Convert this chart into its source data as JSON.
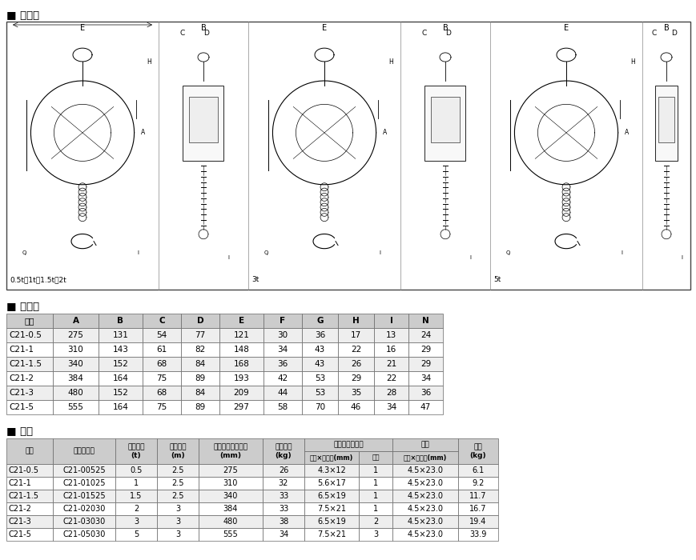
{
  "title_section1": "■ 寸法図",
  "title_section2": "■ 寸法表",
  "title_section3": "■ 仕様",
  "diagram_label1": "0.5t・1t・1.5t・2t",
  "diagram_label2": "3t",
  "diagram_label3": "5t",
  "table1_headers": [
    "型式",
    "A",
    "B",
    "C",
    "D",
    "E",
    "F",
    "G",
    "H",
    "I",
    "N"
  ],
  "table1_rows": [
    [
      "C21-0.5",
      "275",
      "131",
      "54",
      "77",
      "121",
      "30",
      "36",
      "17",
      "13",
      "24"
    ],
    [
      "C21-1",
      "310",
      "143",
      "61",
      "82",
      "148",
      "34",
      "43",
      "22",
      "16",
      "29"
    ],
    [
      "C21-1.5",
      "340",
      "152",
      "68",
      "84",
      "168",
      "36",
      "43",
      "26",
      "21",
      "29"
    ],
    [
      "C21-2",
      "384",
      "164",
      "75",
      "89",
      "193",
      "42",
      "53",
      "29",
      "22",
      "34"
    ],
    [
      "C21-3",
      "480",
      "152",
      "68",
      "84",
      "209",
      "44",
      "53",
      "35",
      "28",
      "36"
    ],
    [
      "C21-5",
      "555",
      "164",
      "75",
      "89",
      "297",
      "58",
      "70",
      "46",
      "34",
      "47"
    ]
  ],
  "table2_rows": [
    [
      "C21-0.5",
      "C21-00525",
      "0.5",
      "2.5",
      "275",
      "26",
      "4.3×12",
      "1",
      "4.5×23.0",
      "6.1"
    ],
    [
      "C21-1",
      "C21-01025",
      "1",
      "2.5",
      "310",
      "32",
      "5.6×17",
      "1",
      "4.5×23.0",
      "9.2"
    ],
    [
      "C21-1.5",
      "C21-01525",
      "1.5",
      "2.5",
      "340",
      "33",
      "6.5×19",
      "1",
      "4.5×23.0",
      "11.7"
    ],
    [
      "C21-2",
      "C21-02030",
      "2",
      "3",
      "384",
      "33",
      "7.5×21",
      "1",
      "4.5×23.0",
      "16.7"
    ],
    [
      "C21-3",
      "C21-03030",
      "3",
      "3",
      "480",
      "38",
      "6.5×19",
      "2",
      "4.5×23.0",
      "19.4"
    ],
    [
      "C21-5",
      "C21-05030",
      "5",
      "3",
      "555",
      "34",
      "7.5×21",
      "3",
      "4.5×23.0",
      "33.9"
    ]
  ],
  "bg_color": "#ffffff",
  "header_bg": "#cccccc",
  "alt_row_bg": "#eeeeee",
  "border_color": "#666666",
  "text_color": "#000000"
}
